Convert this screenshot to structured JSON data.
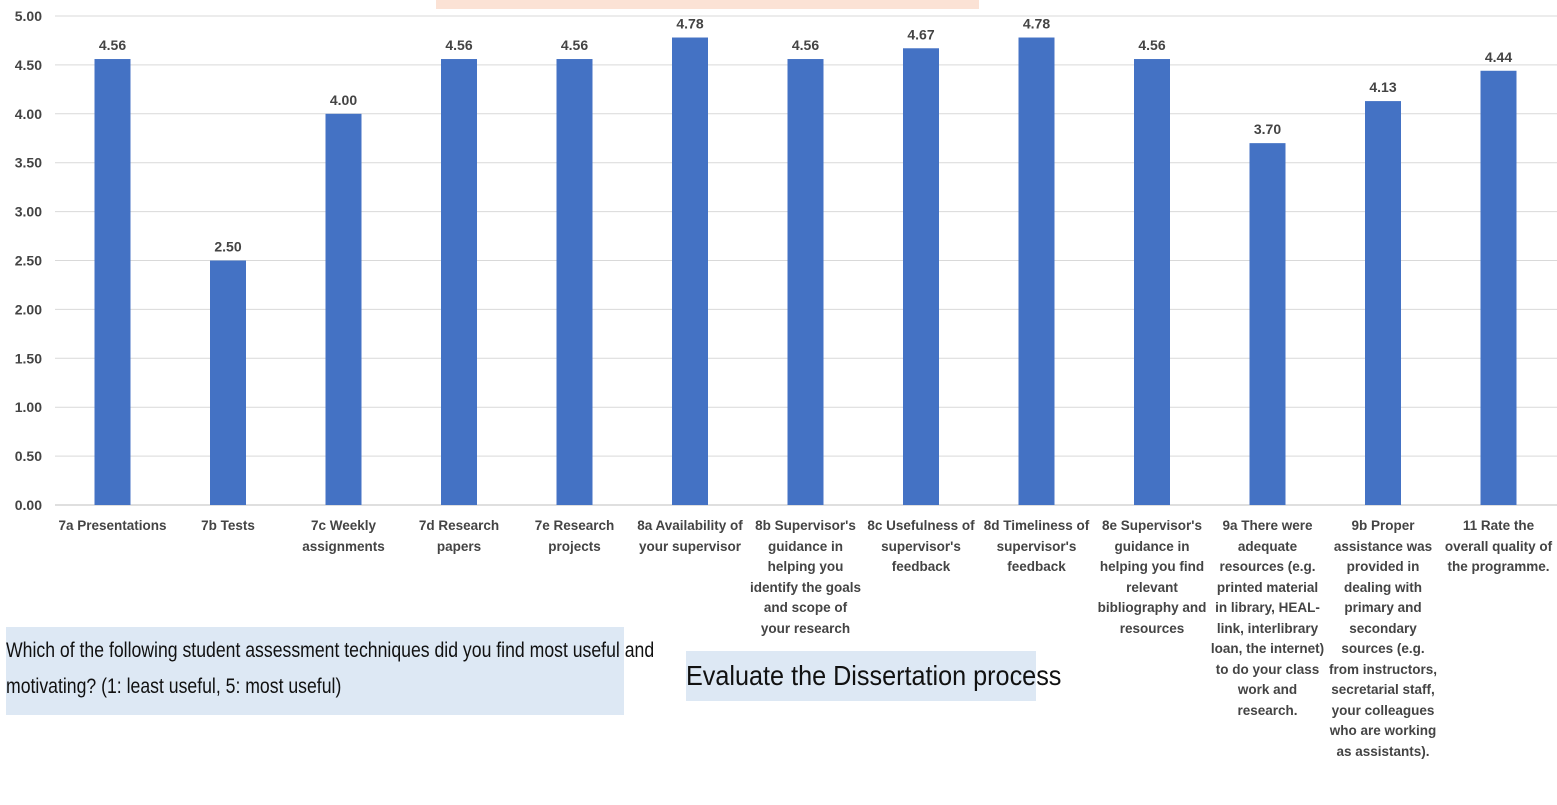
{
  "chart_data": {
    "type": "bar",
    "categories": [
      "7a Presentations",
      "7b Tests",
      "7c  Weekly assignments",
      "7d Research papers",
      "7e  Research projects",
      "8a  Availability of your supervisor",
      "8b  Supervisor's guidance in helping you identify the goals and scope of your research",
      "8c  Usefulness of supervisor's feedback",
      "8d  Timeliness of supervisor's feedback",
      "8e  Supervisor's guidance in helping you find relevant bibliography and resources",
      "9a   There were adequate resources (e.g. printed material in library, HEAL-link, interlibrary loan, the internet) to do your class work and research.",
      "9b  Proper assistance was provided in dealing with primary and secondary sources (e.g. from instructors, secretarial staff, your colleagues who are working as assistants).",
      "11   Rate the overall quality of the programme."
    ],
    "values": [
      4.56,
      2.5,
      4.0,
      4.56,
      4.56,
      4.78,
      4.56,
      4.67,
      4.78,
      4.56,
      3.7,
      4.13,
      4.44
    ],
    "value_labels": [
      "4.56",
      "2.50",
      "4.00",
      "4.56",
      "4.56",
      "4.78",
      "4.56",
      "4.67",
      "4.78",
      "4.56",
      "3.70",
      "4.13",
      "4.44"
    ],
    "ylim": [
      0,
      5
    ],
    "yticks": [
      "0.00",
      "0.50",
      "1.00",
      "1.50",
      "2.00",
      "2.50",
      "3.00",
      "3.50",
      "4.00",
      "4.50",
      "5.00"
    ],
    "bar_color": "#4472c4",
    "grid": true,
    "title": "",
    "xlabel": "",
    "ylabel": ""
  },
  "annotations": {
    "assessment_note": "Which of the following student assessment techniques did you find most useful and motivating? (1: least useful, 5: most useful)",
    "dissertation_note": "Evaluate the Dissertation process"
  }
}
